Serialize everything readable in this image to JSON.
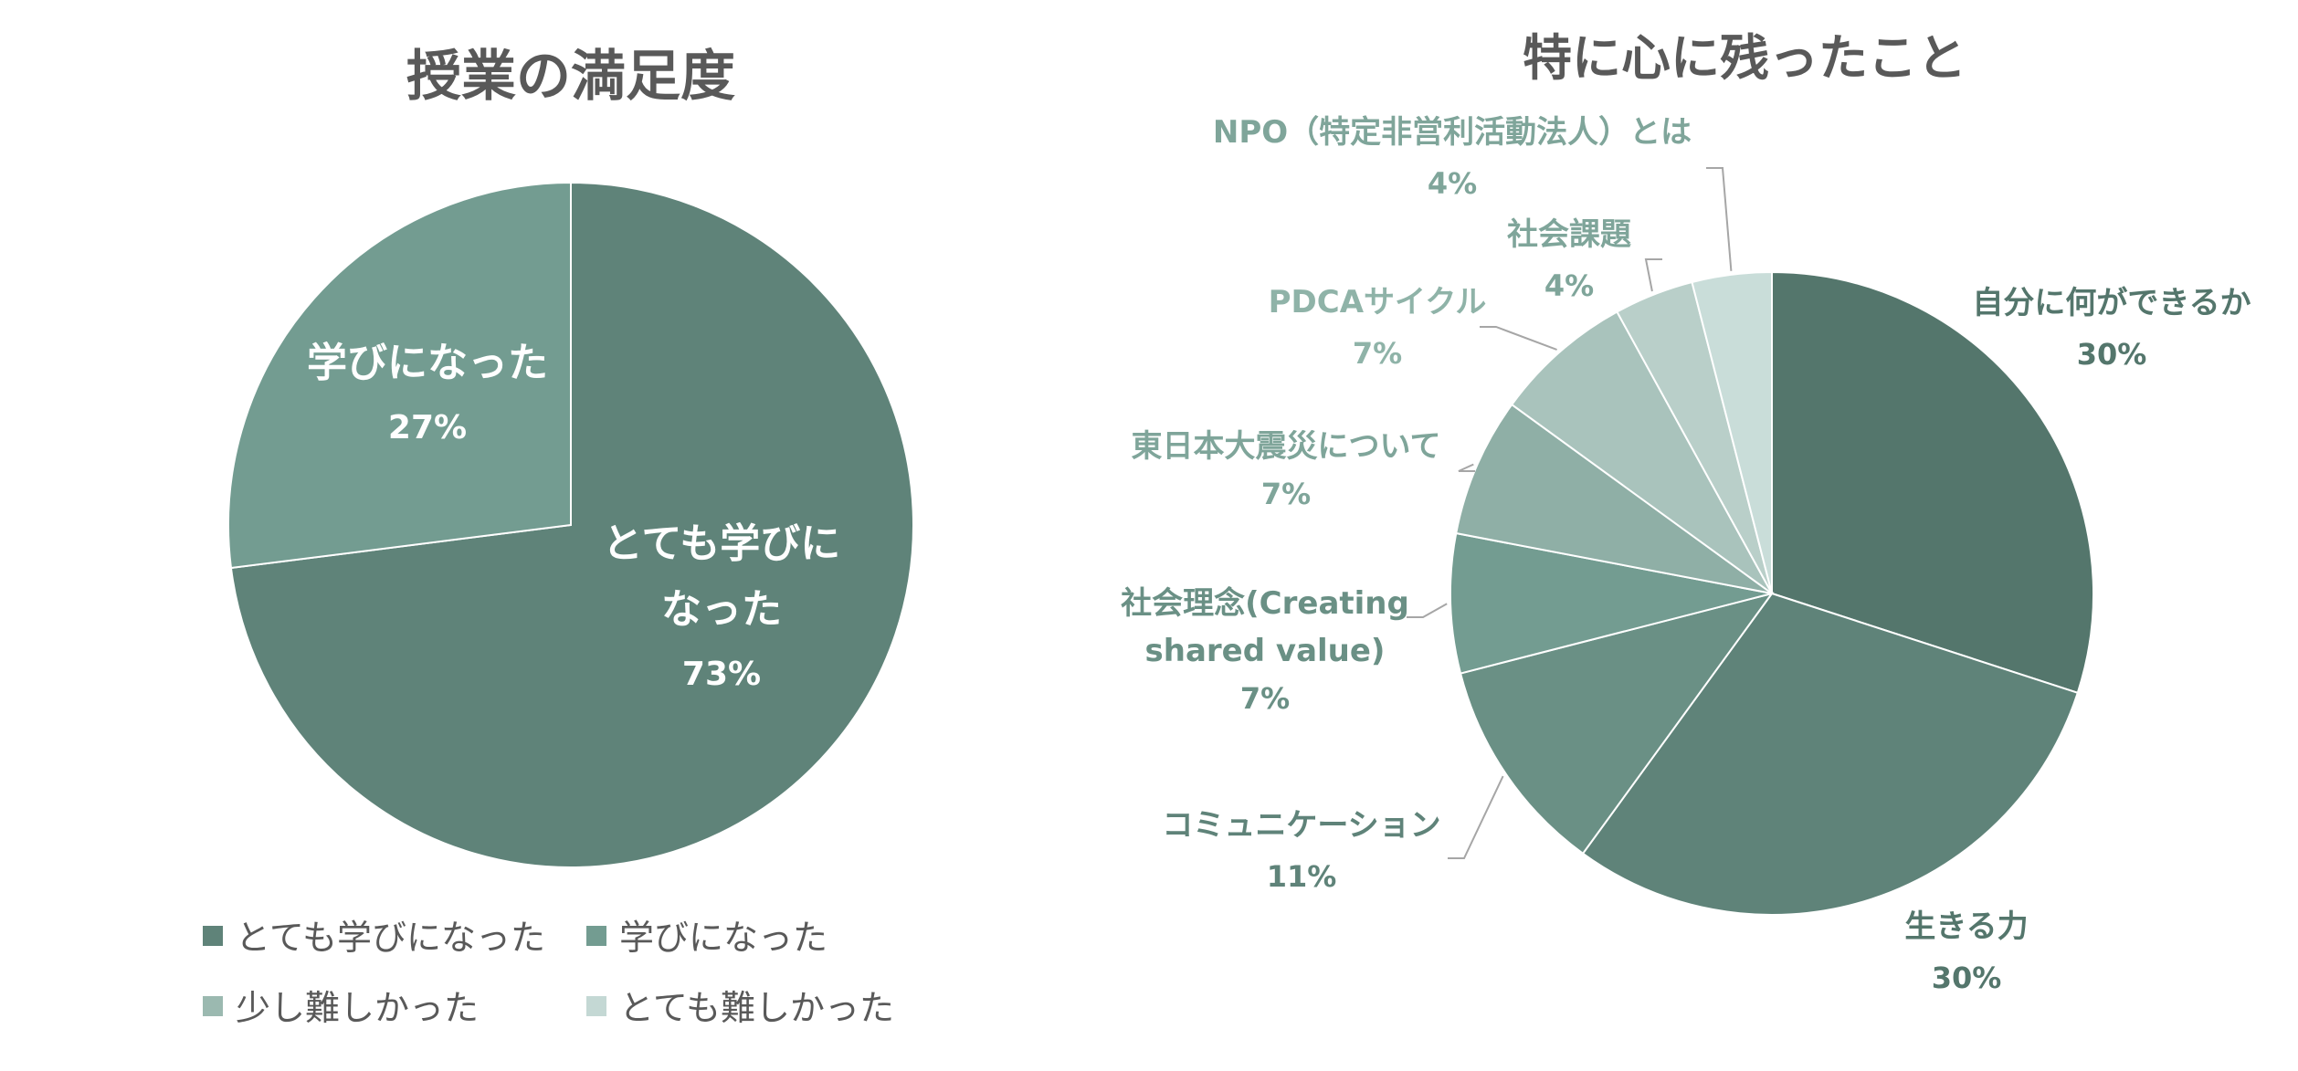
{
  "chart_data": [
    {
      "type": "pie",
      "title": "授業の満足度",
      "categories": [
        "とても学びになった",
        "学びになった",
        "少し難しかった",
        "とても難しかった"
      ],
      "values": [
        73,
        27,
        0,
        0
      ],
      "value_labels": [
        "73%",
        "27%",
        "",
        ""
      ],
      "slice_labels": [
        {
          "lines": [
            "とても学びに",
            "なった"
          ],
          "pct": "73%"
        },
        {
          "lines": [
            "学びになった"
          ],
          "pct": "27%"
        }
      ],
      "colors": [
        "#5f8379",
        "#739c91",
        "#9bb9b0",
        "#c4d8d4"
      ],
      "legend_position": "bottom",
      "legend": [
        {
          "label": "とても学びになった",
          "color": "#5f8379"
        },
        {
          "label": "学びになった",
          "color": "#739c91"
        },
        {
          "label": "少し難しかった",
          "color": "#9bb9b0"
        },
        {
          "label": "とても難しかった",
          "color": "#c4d8d4"
        }
      ]
    },
    {
      "type": "pie",
      "title": "特に心に残ったこと",
      "categories": [
        "自分に何ができるか",
        "生きる力",
        "コミュニケーション",
        "社会理念(Creating shared value)",
        "東日本大震災について",
        "PDCAサイクル",
        "社会課題",
        "NPO（特定非営利活動法人）とは"
      ],
      "values": [
        30,
        30,
        11,
        7,
        7,
        7,
        4,
        4
      ],
      "slice_labels": [
        {
          "lines": [
            "自分に何ができるか"
          ],
          "pct": "30%"
        },
        {
          "lines": [
            "生きる力"
          ],
          "pct": "30%"
        },
        {
          "lines": [
            "コミュニケーション"
          ],
          "pct": "11%"
        },
        {
          "lines": [
            "社会理念(Creating",
            "shared value)"
          ],
          "pct": "7%"
        },
        {
          "lines": [
            "東日本大震災について"
          ],
          "pct": "7%"
        },
        {
          "lines": [
            "PDCAサイクル"
          ],
          "pct": "7%"
        },
        {
          "lines": [
            "社会課題"
          ],
          "pct": "4%"
        },
        {
          "lines": [
            "NPO（特定非営利活動法人）とは"
          ],
          "pct": "4%"
        }
      ],
      "colors": [
        "#54766c",
        "#5f8379",
        "#6a9085",
        "#739c91",
        "#8fafa6",
        "#a9c3bc",
        "#b9cfc9",
        "#c9ddd9"
      ],
      "label_colors": [
        "#54766c",
        "#54766c",
        "#5f8379",
        "#6a9085",
        "#7fa59a",
        "#8fb3a8",
        "#7fa59a",
        "#7fa59a"
      ]
    }
  ]
}
